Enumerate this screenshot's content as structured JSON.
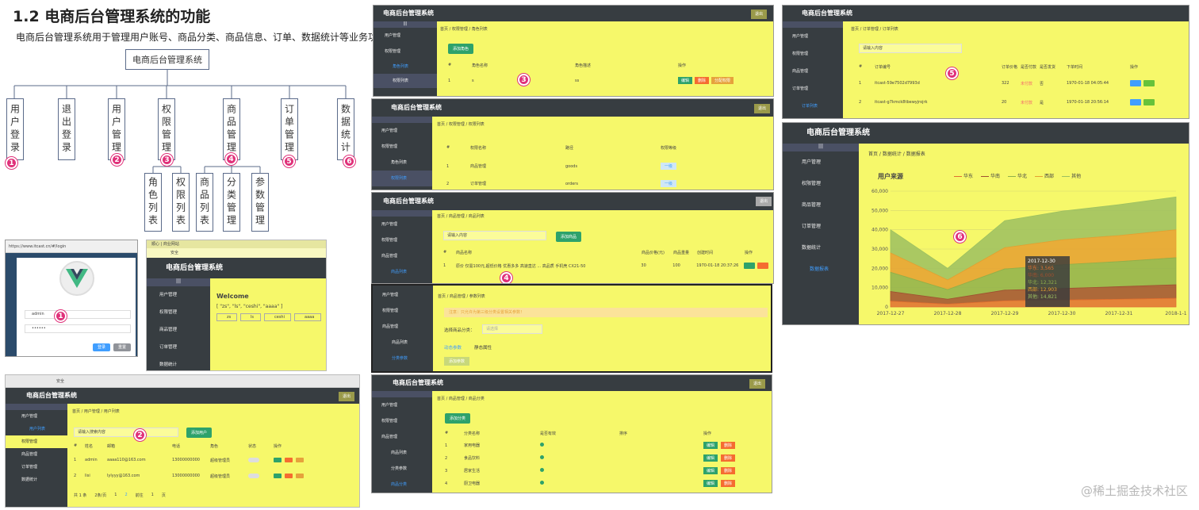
{
  "title": "1.2 电商后台管理系统的功能",
  "intro": "电商后台管理系统用于管理用户账号、商品分类、商品信息、订单、数据统计等业务功能。",
  "tree": {
    "root": "电商后台管理系统",
    "level1": [
      "用户登录",
      "退出登录",
      "用户管理",
      "权限管理",
      "商品管理",
      "订单管理",
      "数据统计"
    ],
    "perm_children": [
      "角色列表",
      "权限列表"
    ],
    "goods_children": [
      "商品列表",
      "分类管理",
      "参数管理"
    ]
  },
  "badges": [
    "1",
    "2",
    "3",
    "4",
    "5",
    "6"
  ],
  "app": {
    "name": "电商后台管理系统",
    "logout": "退出",
    "toggle": "|||",
    "menu": [
      "用户管理",
      "权限管理",
      "商品管理",
      "订单管理",
      "数据统计"
    ],
    "sub_users": "用户列表",
    "sub_roles": "角色列表",
    "sub_rights": "权限列表",
    "sub_goods": "商品列表",
    "sub_params": "分类参数",
    "sub_cate": "商品分类",
    "sub_orders": "订单列表",
    "sub_reports": "数据报表",
    "home": "首页"
  },
  "login": {
    "url": "https://www.itcast.cn/#/login",
    "user_value": "admin",
    "pwd_value": "••••••",
    "login_btn": "登录",
    "reset_btn": "重置"
  },
  "welcome": {
    "tab": "顺心 | 商业网站",
    "heading": "Welcome",
    "array_text": "[ \"zs\", \"ls\", \"ceshi\", \"aaaa\" ]",
    "checks": [
      "zs",
      "ls",
      "ceshi",
      "aaaa"
    ],
    "addr": "安全"
  },
  "users_page": {
    "crumbs": [
      "首页",
      "用户管理",
      "用户列表"
    ],
    "search_placeholder": "请输入搜索内容",
    "add_btn": "添加用户",
    "cols": [
      "#",
      "姓名",
      "邮箱",
      "电话",
      "角色",
      "状态",
      "操作"
    ],
    "rows": [
      [
        "1",
        "admin",
        "aaaa110@163.com",
        "13000000000",
        "超级管理员"
      ],
      [
        "2",
        "lisi",
        "lylyyy@163.com",
        "13000000000",
        "超级管理员"
      ]
    ],
    "pager": [
      "共 1 条",
      "2条/页",
      "1",
      "2",
      "前往",
      "1",
      "页"
    ],
    "addr": "安全"
  },
  "roles_page": {
    "crumbs": [
      "首页",
      "权限管理",
      "角色列表"
    ],
    "add_btn": "添加角色",
    "cols": [
      "#",
      "角色名称",
      "角色描述",
      "操作"
    ],
    "row": [
      "1",
      "s",
      "ss"
    ],
    "ops": [
      "编辑",
      "删除",
      "分配权限"
    ]
  },
  "rights_page": {
    "crumbs": [
      "首页",
      "权限管理",
      "权限列表"
    ],
    "cols": [
      "#",
      "权限名称",
      "路径",
      "权限等级"
    ],
    "rows": [
      [
        "1",
        "商品管理",
        "goods",
        "一级"
      ],
      [
        "2",
        "订单管理",
        "orders",
        "一级"
      ]
    ]
  },
  "goods_page": {
    "crumbs": [
      "首页",
      "商品管理",
      "商品列表"
    ],
    "search_placeholder": "请输入内容",
    "add_btn": "添加商品",
    "cols": [
      "#",
      "商品名称",
      "商品价格(元)",
      "商品重量",
      "创建时间",
      "操作"
    ],
    "row": [
      "1",
      "原价 仅需100元,超低价格 优惠多多 高速直达 ... 高品质 手机壳 CX21-50",
      "30",
      "100",
      "1970-01-18 20:37:26"
    ]
  },
  "params_page": {
    "crumbs": [
      "首页",
      "商品管理",
      "参数列表"
    ],
    "warning": "注意：只允许为第三级分类设置相关参数！",
    "select_label": "选择商品分类：",
    "select_placeholder": "请选择",
    "tabs": [
      "动态参数",
      "静态属性"
    ],
    "add_btn": "添加参数"
  },
  "cate_page": {
    "crumbs": [
      "首页",
      "商品管理",
      "商品分类"
    ],
    "add_btn": "添加分类",
    "cols": [
      "#",
      "分类名称",
      "是否有效",
      "排序",
      "操作"
    ],
    "rows": [
      "家用电器",
      "食品饮料",
      "居家生活",
      "厨卫电器"
    ],
    "ops": [
      "编辑",
      "删除"
    ]
  },
  "orders_page": {
    "crumbs": [
      "首页",
      "订单管理",
      "订单列表"
    ],
    "search_placeholder": "请输入内容",
    "cols": [
      "#",
      "订单编号",
      "订单价格",
      "是否付款",
      "是否发货",
      "下单时间",
      "操作"
    ],
    "rows": [
      [
        "1",
        "itcast-59e7502d7993d",
        "322",
        "未付款",
        "否",
        "1970-01-18 04:05:44"
      ],
      [
        "2",
        "itcast-g7kmck8tbewyjrojrk",
        "20",
        "未付款",
        "是",
        "1970-01-18 20:56:14"
      ]
    ]
  },
  "report_page": {
    "crumbs": [
      "首页",
      "数据统计",
      "数据报表"
    ],
    "chart_title": "用户来源",
    "tooltip_date": "2017-12-30",
    "tooltip_lines": [
      "华东: 3,565",
      "华南: 6,000",
      "华北: 12,321",
      "西部: 12,903",
      "其他: 14,821"
    ]
  },
  "chart_data": {
    "type": "area",
    "title": "用户来源",
    "x": [
      "2017-12-27",
      "2017-12-28",
      "2017-12-29",
      "2017-12-30",
      "2017-12-31",
      "2018-1-1"
    ],
    "ylim": [
      0,
      60000
    ],
    "yticks": [
      "0",
      "10,000",
      "20,000",
      "30,000",
      "40,000",
      "50,000",
      "60,000"
    ],
    "stacked": true,
    "legend_position": "top",
    "series": [
      {
        "name": "华东",
        "values": [
          3000,
          1500,
          3200,
          3565,
          4000,
          4500
        ],
        "color": "#e07030"
      },
      {
        "name": "华南",
        "values": [
          5000,
          2500,
          5500,
          6000,
          6500,
          7000
        ],
        "color": "#a05030"
      },
      {
        "name": "华北",
        "values": [
          10000,
          5000,
          11000,
          12321,
          13000,
          14000
        ],
        "color": "#8fb04a"
      },
      {
        "name": "西部",
        "values": [
          10000,
          5000,
          11000,
          12903,
          13500,
          14500
        ],
        "color": "#e5a030"
      },
      {
        "name": "其他",
        "values": [
          12000,
          6000,
          14000,
          14821,
          16000,
          17000
        ],
        "color": "#9cc060"
      }
    ]
  },
  "watermark": "@稀土掘金技术社区"
}
